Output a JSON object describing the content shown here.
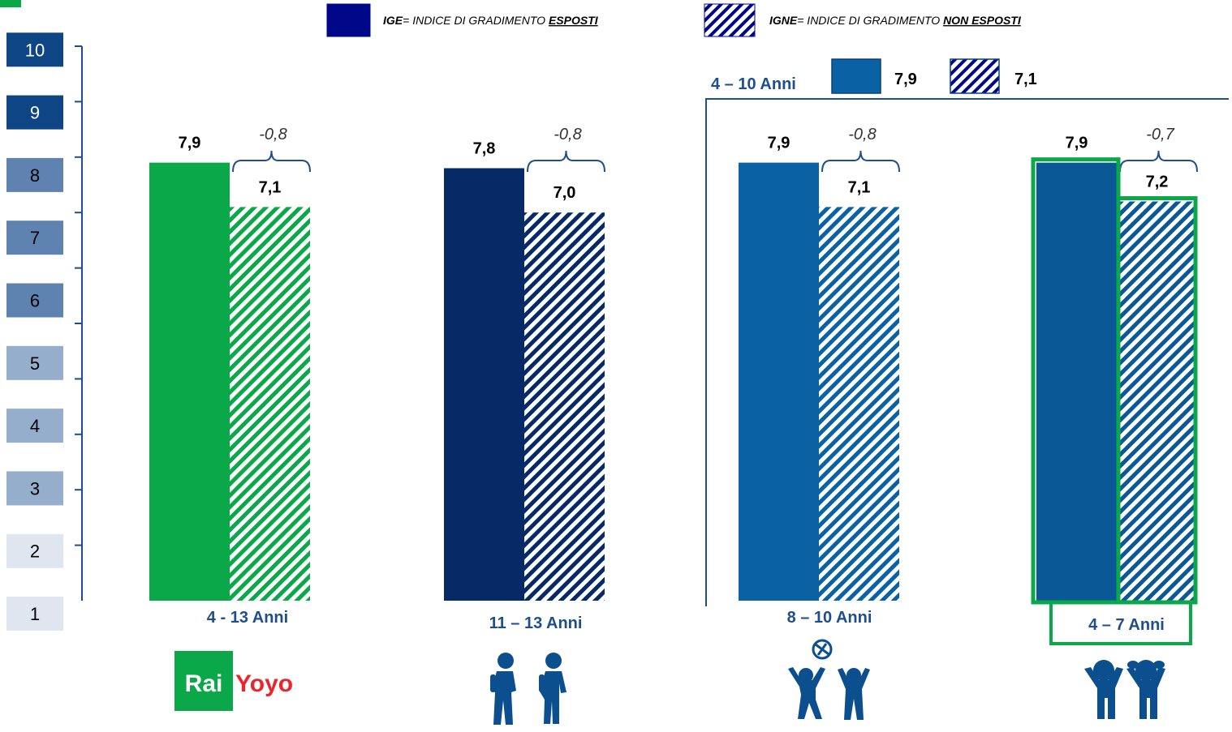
{
  "legend": {
    "ige_abbr": "IGE",
    "ige_rest": "= INDICE DI GRADIMENTO ",
    "ige_key": "ESPOSTI",
    "igne_abbr": "IGNE",
    "igne_rest": "= INDICE DI GRADIMENTO ",
    "igne_key": "NON ESPOSTI"
  },
  "subgroup": {
    "label": "4 – 10 Anni",
    "ige_value": "7,9",
    "igne_value": "7,1"
  },
  "colors": {
    "green": "#0ba84a",
    "navy": "#052a66",
    "blue": "#0a62a4",
    "blue2": "#0b5896",
    "legend_navy": "#00088a"
  },
  "chart_data": {
    "type": "bar",
    "ylim": [
      1,
      10
    ],
    "scale": [
      1,
      2,
      3,
      4,
      5,
      6,
      7,
      8,
      9,
      10
    ],
    "categories": [
      "4 - 13 Anni",
      "11 – 13 Anni",
      "8 – 10 Anni",
      "4 – 7 Anni"
    ],
    "series": [
      {
        "name": "IGE",
        "values": [
          7.9,
          7.8,
          7.9,
          7.9
        ],
        "labels": [
          "7,9",
          "7,8",
          "7,9",
          "7,9"
        ]
      },
      {
        "name": "IGNE",
        "values": [
          7.1,
          7.0,
          7.1,
          7.2
        ],
        "labels": [
          "7,1",
          "7,0",
          "7,1",
          "7,2"
        ]
      }
    ],
    "differences": [
      "-0,8",
      "-0,8",
      "-0,8",
      "-0,7"
    ],
    "icons": [
      "rai-yoyo-logo",
      "teen-students-icon",
      "kids-playing-ball-icon",
      "young-children-icon"
    ],
    "logo_text": [
      "Rai",
      "Yoyo"
    ]
  }
}
